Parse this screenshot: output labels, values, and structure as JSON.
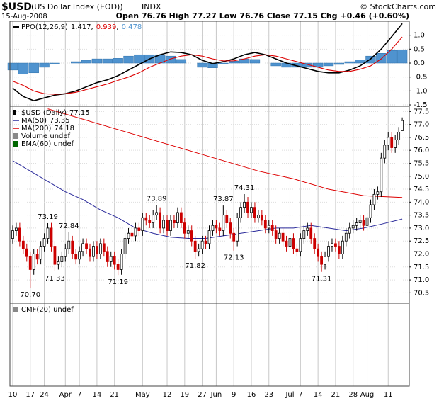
{
  "header": {
    "symbol": "$USD",
    "name": "(US Dollar Index (EOD))",
    "exchange": "INDX",
    "date": "15-Aug-2008",
    "quote": "Open 76.76 High 77.27 Low 76.76 Close 77.15 Chg +0.46 (+0.60%)",
    "credit": "© StockCharts.com"
  },
  "chart_data": [
    {
      "type": "ppo",
      "ylim": [
        -1.55,
        1.5
      ],
      "yticks": [
        {
          "value": 1.0,
          "label": "1.0"
        },
        0.5,
        {
          "value": 0.0,
          "label": "0.0"
        },
        -0.5,
        {
          "value": -1.0,
          "label": "-1.0"
        },
        -1.5
      ],
      "x": [
        0,
        3,
        6,
        9,
        12,
        15,
        18,
        21,
        24,
        27,
        30,
        33,
        36,
        39,
        42,
        45,
        48,
        51,
        54,
        57,
        60,
        63,
        66,
        69,
        72,
        75,
        78,
        81,
        84,
        87,
        90,
        93,
        96,
        99,
        102,
        105,
        108,
        111
      ],
      "series": [
        {
          "name": "PPO(12,26,9)",
          "color": "#000000",
          "style": "line",
          "values": [
            -0.9,
            -1.2,
            -1.35,
            -1.25,
            -1.15,
            -1.1,
            -1.0,
            -0.85,
            -0.7,
            -0.6,
            -0.45,
            -0.25,
            -0.05,
            0.15,
            0.3,
            0.4,
            0.38,
            0.3,
            0.1,
            -0.02,
            0.05,
            0.15,
            0.3,
            0.38,
            0.3,
            0.15,
            0.0,
            -0.1,
            -0.2,
            -0.3,
            -0.35,
            -0.35,
            -0.25,
            -0.1,
            0.15,
            0.5,
            0.95,
            1.417
          ]
        },
        {
          "color": "#dd0000",
          "style": "line",
          "values": [
            -0.65,
            -0.8,
            -1.0,
            -1.1,
            -1.12,
            -1.1,
            -1.05,
            -0.95,
            -0.85,
            -0.75,
            -0.62,
            -0.5,
            -0.35,
            -0.15,
            0.0,
            0.15,
            0.25,
            0.3,
            0.25,
            0.15,
            0.08,
            0.08,
            0.15,
            0.25,
            0.3,
            0.25,
            0.15,
            0.05,
            -0.05,
            -0.15,
            -0.25,
            -0.3,
            -0.3,
            -0.22,
            -0.1,
            0.15,
            0.5,
            0.939
          ]
        },
        {
          "color": "#4f93cf",
          "style": "bar",
          "values": [
            -0.25,
            -0.4,
            -0.35,
            -0.15,
            -0.03,
            0.0,
            0.05,
            0.1,
            0.15,
            0.15,
            0.17,
            0.25,
            0.3,
            0.3,
            0.3,
            0.25,
            0.13,
            0.0,
            -0.15,
            -0.17,
            -0.03,
            0.07,
            0.15,
            0.13,
            0.0,
            -0.1,
            -0.15,
            -0.15,
            -0.15,
            -0.15,
            -0.1,
            -0.05,
            0.05,
            0.12,
            0.25,
            0.35,
            0.45,
            0.478
          ]
        }
      ]
    },
    {
      "type": "candlestick",
      "legend": "$USD (Daily)",
      "up_color": "#000000",
      "down_color": "#cc0000",
      "ylim": [
        70.1,
        77.7
      ],
      "yticks": [
        70.5,
        {
          "value": 71.0,
          "label": "71.0"
        },
        71.5,
        {
          "value": 72.0,
          "label": "72.0"
        },
        72.5,
        {
          "value": 73.0,
          "label": "73.0"
        },
        73.5,
        {
          "value": 74.0,
          "label": "74.0"
        },
        74.5,
        {
          "value": 75.0,
          "label": "75.0"
        },
        75.5,
        {
          "value": 76.0,
          "label": "76.0"
        },
        76.5,
        {
          "value": 77.0,
          "label": "77.0"
        },
        77.5
      ],
      "ohlc": [
        [
          72.6,
          73.1,
          72.4,
          72.9
        ],
        [
          72.9,
          73.2,
          72.7,
          73.0
        ],
        [
          73.0,
          73.2,
          72.3,
          72.5
        ],
        [
          72.5,
          72.7,
          72.0,
          72.2
        ],
        [
          72.2,
          72.4,
          71.7,
          71.9
        ],
        [
          71.9,
          72.1,
          70.7,
          71.4
        ],
        [
          71.4,
          72.2,
          71.2,
          72.0
        ],
        [
          72.0,
          72.2,
          71.6,
          71.8
        ],
        [
          71.8,
          72.5,
          71.6,
          72.3
        ],
        [
          72.3,
          72.8,
          72.1,
          72.6
        ],
        [
          72.6,
          73.19,
          72.4,
          73.0
        ],
        [
          73.0,
          73.2,
          72.1,
          72.3
        ],
        [
          72.3,
          72.5,
          71.33,
          71.6
        ],
        [
          71.6,
          71.9,
          71.4,
          71.7
        ],
        [
          71.7,
          72.1,
          71.5,
          71.9
        ],
        [
          71.9,
          72.4,
          71.7,
          72.2
        ],
        [
          72.2,
          72.84,
          72.0,
          72.5
        ],
        [
          72.5,
          72.7,
          71.8,
          72.0
        ],
        [
          72.0,
          72.2,
          71.6,
          71.8
        ],
        [
          71.8,
          72.3,
          71.6,
          72.1
        ],
        [
          72.1,
          72.6,
          71.9,
          72.4
        ],
        [
          72.4,
          72.6,
          72.0,
          72.2
        ],
        [
          72.2,
          72.4,
          71.7,
          71.9
        ],
        [
          71.9,
          72.5,
          71.7,
          72.3
        ],
        [
          72.3,
          72.5,
          71.8,
          72.0
        ],
        [
          72.0,
          72.6,
          71.8,
          72.4
        ],
        [
          72.4,
          72.6,
          71.9,
          72.1
        ],
        [
          72.1,
          72.3,
          71.5,
          71.7
        ],
        [
          71.7,
          72.1,
          71.5,
          71.9
        ],
        [
          71.9,
          72.1,
          71.4,
          71.6
        ],
        [
          71.6,
          71.8,
          71.19,
          71.4
        ],
        [
          71.4,
          72.2,
          71.2,
          72.0
        ],
        [
          72.0,
          72.8,
          71.8,
          72.6
        ],
        [
          72.6,
          73.0,
          72.4,
          72.8
        ],
        [
          72.8,
          73.0,
          72.5,
          72.7
        ],
        [
          72.7,
          73.2,
          72.5,
          73.0
        ],
        [
          73.0,
          73.2,
          72.7,
          72.9
        ],
        [
          72.9,
          73.6,
          72.7,
          73.4
        ],
        [
          73.4,
          73.6,
          73.1,
          73.3
        ],
        [
          73.3,
          73.5,
          73.0,
          73.2
        ],
        [
          73.2,
          73.7,
          73.0,
          73.5
        ],
        [
          73.5,
          73.89,
          73.3,
          73.6
        ],
        [
          73.6,
          73.8,
          72.8,
          73.0
        ],
        [
          73.0,
          73.5,
          72.8,
          73.3
        ],
        [
          73.3,
          73.5,
          72.7,
          72.9
        ],
        [
          72.9,
          73.5,
          72.7,
          73.3
        ],
        [
          73.3,
          73.5,
          73.0,
          73.2
        ],
        [
          73.2,
          73.8,
          73.0,
          73.6
        ],
        [
          73.6,
          73.8,
          73.0,
          73.2
        ],
        [
          73.2,
          73.4,
          72.6,
          72.8
        ],
        [
          72.8,
          73.1,
          72.6,
          72.9
        ],
        [
          72.9,
          73.1,
          72.3,
          72.5
        ],
        [
          72.5,
          72.7,
          71.82,
          72.1
        ],
        [
          72.1,
          72.4,
          71.9,
          72.2
        ],
        [
          72.2,
          72.7,
          72.0,
          72.5
        ],
        [
          72.5,
          72.7,
          72.2,
          72.4
        ],
        [
          72.4,
          73.1,
          72.2,
          72.9
        ],
        [
          72.9,
          73.3,
          72.7,
          73.1
        ],
        [
          73.1,
          73.3,
          72.8,
          73.0
        ],
        [
          73.0,
          73.2,
          72.7,
          72.9
        ],
        [
          72.9,
          73.87,
          72.7,
          73.5
        ],
        [
          73.5,
          73.7,
          73.0,
          73.2
        ],
        [
          73.2,
          73.4,
          72.6,
          72.8
        ],
        [
          72.8,
          73.0,
          72.13,
          72.5
        ],
        [
          72.5,
          73.6,
          72.3,
          73.4
        ],
        [
          73.4,
          74.0,
          73.2,
          73.8
        ],
        [
          73.8,
          74.31,
          73.6,
          74.0
        ],
        [
          74.0,
          74.2,
          73.4,
          73.6
        ],
        [
          73.6,
          74.0,
          73.4,
          73.8
        ],
        [
          73.8,
          74.0,
          73.2,
          73.4
        ],
        [
          73.4,
          73.7,
          73.2,
          73.5
        ],
        [
          73.5,
          73.7,
          73.1,
          73.3
        ],
        [
          73.3,
          73.5,
          72.8,
          73.0
        ],
        [
          73.0,
          73.3,
          72.8,
          73.1
        ],
        [
          73.1,
          73.3,
          72.7,
          72.9
        ],
        [
          72.9,
          73.1,
          72.4,
          72.6
        ],
        [
          72.6,
          73.0,
          72.4,
          72.8
        ],
        [
          72.8,
          73.0,
          72.3,
          72.5
        ],
        [
          72.5,
          72.7,
          72.1,
          72.3
        ],
        [
          72.3,
          72.8,
          72.1,
          72.6
        ],
        [
          72.6,
          72.8,
          72.0,
          72.2
        ],
        [
          72.2,
          72.4,
          71.9,
          72.1
        ],
        [
          72.1,
          72.8,
          71.9,
          72.6
        ],
        [
          72.6,
          73.1,
          72.4,
          72.9
        ],
        [
          72.9,
          73.2,
          72.7,
          73.0
        ],
        [
          73.0,
          73.2,
          72.4,
          72.6
        ],
        [
          72.6,
          72.8,
          72.0,
          72.2
        ],
        [
          72.2,
          72.4,
          71.7,
          71.9
        ],
        [
          71.9,
          72.1,
          71.31,
          71.6
        ],
        [
          71.6,
          72.1,
          71.4,
          71.9
        ],
        [
          71.9,
          72.5,
          71.7,
          72.3
        ],
        [
          72.3,
          72.6,
          72.1,
          72.4
        ],
        [
          72.4,
          72.6,
          72.1,
          72.3
        ],
        [
          72.3,
          72.5,
          71.8,
          72.0
        ],
        [
          72.0,
          72.7,
          71.8,
          72.5
        ],
        [
          72.5,
          73.0,
          72.3,
          72.8
        ],
        [
          72.8,
          73.2,
          72.6,
          73.0
        ],
        [
          73.0,
          73.3,
          72.8,
          73.1
        ],
        [
          73.1,
          73.4,
          72.9,
          73.2
        ],
        [
          73.2,
          73.5,
          73.0,
          73.3
        ],
        [
          73.3,
          73.5,
          72.9,
          73.1
        ],
        [
          73.1,
          73.6,
          72.9,
          73.4
        ],
        [
          73.4,
          74.1,
          73.2,
          73.9
        ],
        [
          73.9,
          74.5,
          73.7,
          74.3
        ],
        [
          74.3,
          74.6,
          74.1,
          74.4
        ],
        [
          74.4,
          75.9,
          74.2,
          75.7
        ],
        [
          75.7,
          76.4,
          75.5,
          76.2
        ],
        [
          76.2,
          76.7,
          76.0,
          76.5
        ],
        [
          76.5,
          76.7,
          75.9,
          76.1
        ],
        [
          76.1,
          76.6,
          75.9,
          76.4
        ],
        [
          76.4,
          76.9,
          76.2,
          76.7
        ],
        [
          76.76,
          77.27,
          76.76,
          77.15
        ]
      ],
      "overlays": [
        {
          "name": "MA(50)",
          "color": "#2a2a9a",
          "x": [
            0,
            5,
            10,
            15,
            20,
            25,
            30,
            35,
            40,
            45,
            50,
            55,
            60,
            65,
            70,
            75,
            80,
            85,
            90,
            95,
            100,
            105,
            111
          ],
          "values": [
            75.6,
            75.2,
            74.8,
            74.4,
            74.1,
            73.7,
            73.4,
            73.0,
            72.8,
            72.65,
            72.6,
            72.6,
            72.7,
            72.8,
            72.9,
            73.0,
            73.0,
            73.1,
            73.0,
            72.9,
            73.0,
            73.15,
            73.35
          ]
        },
        {
          "name": "MA(200)",
          "color": "#dd0000",
          "x": [
            10,
            20,
            30,
            40,
            50,
            60,
            70,
            80,
            90,
            100,
            111
          ],
          "values": [
            77.6,
            77.2,
            76.8,
            76.4,
            76.0,
            75.6,
            75.2,
            74.9,
            74.5,
            74.25,
            74.18
          ]
        }
      ],
      "undefined_overlays": [
        {
          "name": "Volume undef",
          "color": "#888888"
        },
        {
          "name": "EMA(60) undef",
          "color": "#006600"
        }
      ],
      "annotations": [
        {
          "x": 5,
          "y": 70.7,
          "label": "70.70",
          "position": "below"
        },
        {
          "x": 10,
          "y": 73.19,
          "label": "73.19",
          "position": "above"
        },
        {
          "x": 12,
          "y": 71.33,
          "label": "71.33",
          "position": "below"
        },
        {
          "x": 16,
          "y": 72.84,
          "label": "72.84",
          "position": "above"
        },
        {
          "x": 30,
          "y": 71.19,
          "label": "71.19",
          "position": "below"
        },
        {
          "x": 41,
          "y": 73.89,
          "label": "73.89",
          "position": "above"
        },
        {
          "x": 52,
          "y": 71.82,
          "label": "71.82",
          "position": "below"
        },
        {
          "x": 60,
          "y": 73.87,
          "label": "73.87",
          "position": "above"
        },
        {
          "x": 63,
          "y": 72.13,
          "label": "72.13",
          "position": "below"
        },
        {
          "x": 66,
          "y": 74.31,
          "label": "74.31",
          "position": "above"
        },
        {
          "x": 88,
          "y": 71.31,
          "label": "71.31",
          "position": "below"
        }
      ]
    },
    {
      "type": "empty",
      "legend": "CMF(20) undef",
      "xlim": [
        -0.8,
        113
      ],
      "xticks": [
        {
          "value": 0,
          "label": "10"
        },
        {
          "value": 5,
          "label": "17"
        },
        {
          "value": 9,
          "label": "24"
        },
        {
          "value": 15,
          "label": "Apr"
        },
        {
          "value": 19,
          "label": "7"
        },
        {
          "value": 24,
          "label": "14"
        },
        {
          "value": 29,
          "label": "21"
        },
        {
          "value": 37,
          "label": "May"
        },
        {
          "value": 44,
          "label": "12"
        },
        {
          "value": 49,
          "label": "19"
        },
        {
          "value": 54,
          "label": "27"
        },
        {
          "value": 58,
          "label": "Jun"
        },
        {
          "value": 63,
          "label": "9"
        },
        {
          "value": 68,
          "label": "16"
        },
        {
          "value": 73,
          "label": "23"
        },
        {
          "value": 79,
          "label": "Jul"
        },
        {
          "value": 82,
          "label": "7"
        },
        {
          "value": 87,
          "label": "14"
        },
        {
          "value": 92,
          "label": "21"
        },
        {
          "value": 97,
          "label": "28"
        },
        {
          "value": 101,
          "label": "Aug"
        },
        {
          "value": 107,
          "label": "11"
        }
      ]
    }
  ]
}
